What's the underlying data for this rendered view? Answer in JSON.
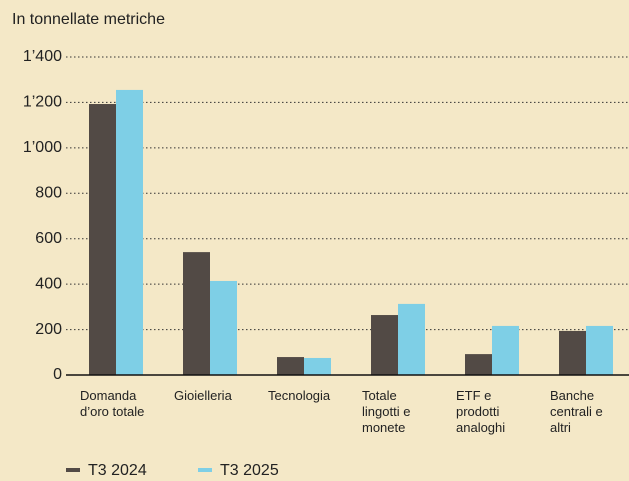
{
  "chart_data": {
    "type": "bar",
    "subtitle": "In tonnellate metriche",
    "categories": [
      "Domanda d’oro totale",
      "Gioielleria",
      "Tecnologia",
      "Totale lingotti e monete",
      "ETF e prodotti analoghi",
      "Banche centrali e altri"
    ],
    "series": [
      {
        "name": "T3 2024",
        "color": "#524a45",
        "values": [
          1193,
          541,
          79,
          264,
          92,
          194
        ]
      },
      {
        "name": "T3 2025",
        "color": "#7ecfe6",
        "values": [
          1255,
          414,
          75,
          313,
          216,
          216
        ]
      }
    ],
    "ylim": [
      0,
      1400
    ],
    "yticks": [
      0,
      200,
      400,
      600,
      800,
      {
        "value": 1000,
        "label": "1’000"
      },
      {
        "value": 1200,
        "label": "1’200"
      },
      {
        "value": 1400,
        "label": "1’400"
      }
    ],
    "grid": true
  }
}
